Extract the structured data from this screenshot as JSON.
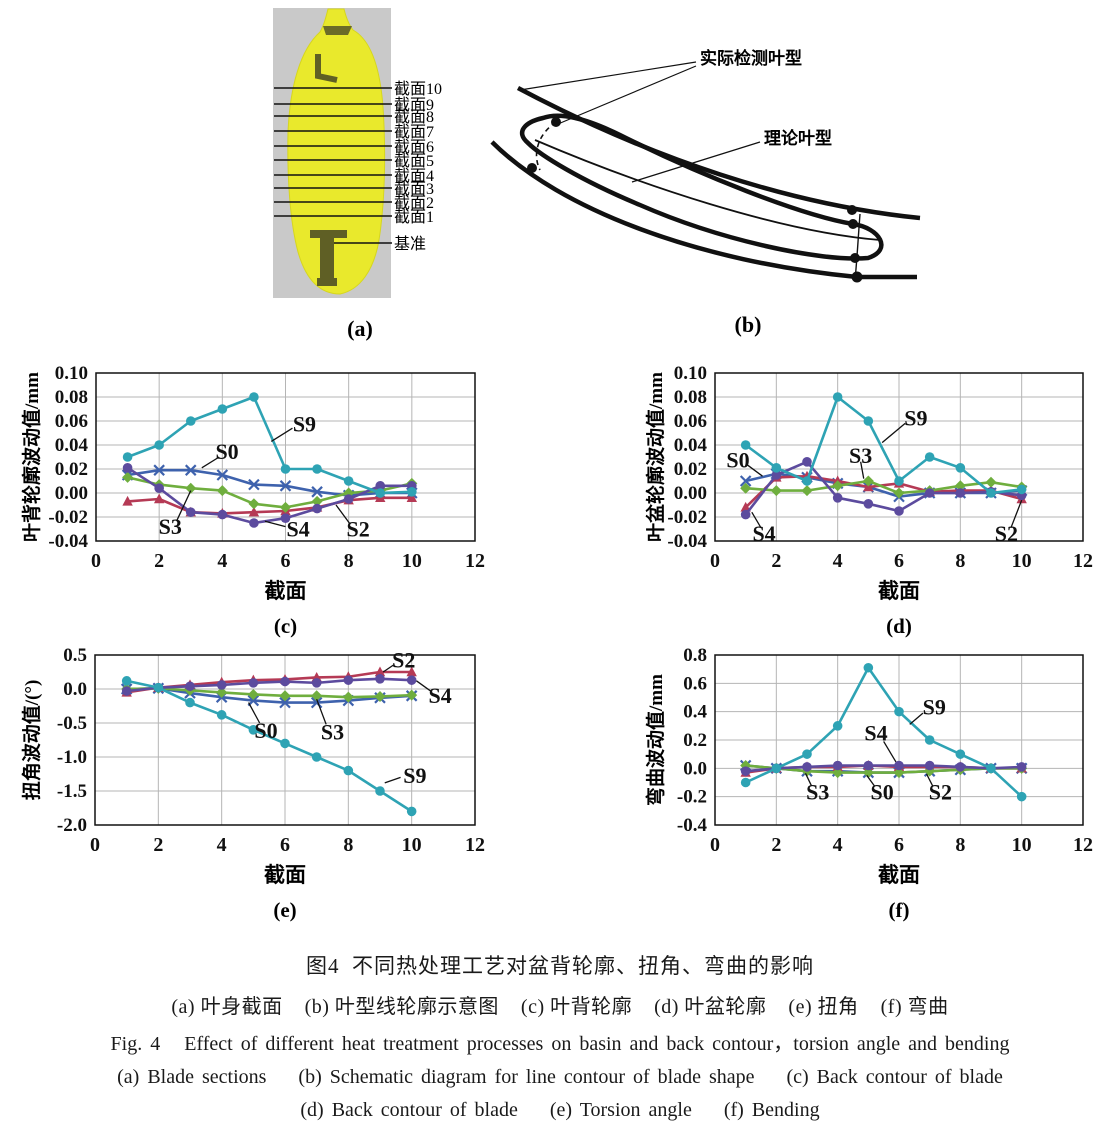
{
  "figure": {
    "caption_zh_title": "图4  不同热处理工艺对盆背轮廓、扭角、弯曲的影响",
    "caption_zh_sub": "(a) 叶身截面    (b) 叶型线轮廓示意图    (c) 叶背轮廓    (d) 叶盆轮廓    (e) 扭角    (f) 弯曲",
    "caption_en_title": "Fig. 4   Effect of different heat treatment processes on basin and back contour，torsion angle and bending",
    "caption_en_sub1": "(a) Blade sections    (b) Schematic diagram for line contour of blade shape    (c) Back contour of blade",
    "caption_en_sub2": "(d) Back contour of blade    (e) Torsion angle    (f) Bending"
  },
  "panel_a": {
    "letter": "(a)",
    "section_labels": [
      "截面10",
      "截面9",
      "截面8",
      "截面7",
      "截面6",
      "截面5",
      "截面4",
      "截面3",
      "截面2",
      "截面1"
    ],
    "datum_label": "基准",
    "blade_color": "#e9e92c",
    "background_color": "#c9c9c9"
  },
  "panel_b": {
    "letter": "(b)",
    "labels": {
      "actual": "实际检测叶型",
      "theory": "理论叶型"
    }
  },
  "colors": {
    "S0": "#3e62ad",
    "S2": "#b53a55",
    "S3": "#6fae3e",
    "S4": "#5c4b9e",
    "S9": "#2ea3b4"
  },
  "markers": {
    "S0": "x",
    "S2": "triangle",
    "S3": "diamond",
    "S4": "circle",
    "S9": "circle"
  },
  "chart_data": [
    {
      "id": "chart-c",
      "type": "line",
      "letter": "(c)",
      "xlabel": "截面",
      "ylabel": "叶背轮廓波动值/mm",
      "xlim": [
        0,
        12
      ],
      "ylim": [
        -0.04,
        0.1
      ],
      "xticks": [
        0,
        2,
        4,
        6,
        8,
        10,
        12
      ],
      "yticks": [
        0.1,
        0.08,
        0.06,
        0.04,
        0.02,
        0.0,
        -0.02,
        -0.04
      ],
      "y_tick_decimals": 2,
      "x": [
        1,
        2,
        3,
        4,
        5,
        6,
        7,
        8,
        9,
        10
      ],
      "series": [
        {
          "name": "S0",
          "values": [
            0.015,
            0.019,
            0.019,
            0.015,
            0.007,
            0.006,
            0.001,
            -0.002,
            0.0,
            0.0
          ]
        },
        {
          "name": "S2",
          "values": [
            -0.007,
            -0.005,
            -0.016,
            -0.017,
            -0.016,
            -0.015,
            -0.012,
            -0.006,
            -0.004,
            -0.004
          ]
        },
        {
          "name": "S3",
          "values": [
            0.013,
            0.007,
            0.004,
            0.002,
            -0.009,
            -0.012,
            -0.007,
            0.0,
            0.002,
            0.008
          ]
        },
        {
          "name": "S4",
          "values": [
            0.021,
            0.004,
            -0.016,
            -0.018,
            -0.025,
            -0.021,
            -0.013,
            -0.005,
            0.006,
            0.006
          ]
        },
        {
          "name": "S9",
          "values": [
            0.03,
            0.04,
            0.06,
            0.07,
            0.08,
            0.02,
            0.02,
            0.01,
            0.0,
            0.001
          ]
        }
      ],
      "annotations": [
        {
          "text": "S9",
          "tx": 6.6,
          "ty": 0.057,
          "x1": 6.22,
          "y1": 0.054,
          "x2": 5.55,
          "y2": 0.043
        },
        {
          "text": "S0",
          "tx": 4.15,
          "ty": 0.034,
          "x1": 3.9,
          "y1": 0.03,
          "x2": 3.35,
          "y2": 0.021
        },
        {
          "text": "S3",
          "tx": 2.35,
          "ty": -0.0285,
          "x1": 2.55,
          "y1": -0.0235,
          "x2": 3.0,
          "y2": 0.002
        },
        {
          "text": "S4",
          "tx": 6.4,
          "ty": -0.0305,
          "x1": 6.0,
          "y1": -0.028,
          "x2": 5.35,
          "y2": -0.0235
        },
        {
          "text": "S2",
          "tx": 8.3,
          "ty": -0.0305,
          "x1": 8.05,
          "y1": -0.026,
          "x2": 7.6,
          "y2": -0.01
        }
      ]
    },
    {
      "id": "chart-d",
      "type": "line",
      "letter": "(d)",
      "xlabel": "截面",
      "ylabel": "叶盆轮廓波动值/mm",
      "xlim": [
        0,
        12
      ],
      "ylim": [
        -0.04,
        0.1
      ],
      "xticks": [
        0,
        2,
        4,
        6,
        8,
        10,
        12
      ],
      "yticks": [
        0.1,
        0.08,
        0.06,
        0.04,
        0.02,
        0.0,
        -0.02,
        -0.04
      ],
      "y_tick_decimals": 2,
      "x": [
        1,
        2,
        3,
        4,
        5,
        6,
        7,
        8,
        9,
        10
      ],
      "series": [
        {
          "name": "S0",
          "values": [
            0.01,
            0.016,
            0.013,
            0.008,
            0.005,
            -0.003,
            0.0,
            0.0,
            0.0,
            0.002
          ]
        },
        {
          "name": "S2",
          "values": [
            -0.012,
            0.013,
            0.014,
            0.01,
            0.005,
            0.008,
            0.001,
            0.002,
            0.002,
            -0.005
          ]
        },
        {
          "name": "S3",
          "values": [
            0.004,
            0.002,
            0.002,
            0.006,
            0.01,
            0.0,
            0.002,
            0.006,
            0.009,
            0.005
          ]
        },
        {
          "name": "S4",
          "values": [
            -0.018,
            0.015,
            0.026,
            -0.004,
            -0.009,
            -0.015,
            0.0,
            0.0,
            0.001,
            -0.002
          ]
        },
        {
          "name": "S9",
          "values": [
            0.04,
            0.021,
            0.01,
            0.08,
            0.06,
            0.01,
            0.03,
            0.021,
            0.0,
            0.003
          ]
        }
      ],
      "annotations": [
        {
          "text": "S0",
          "tx": 0.75,
          "ty": 0.027,
          "x1": 1.05,
          "y1": 0.0235,
          "x2": 1.55,
          "y2": 0.014
        },
        {
          "text": "S9",
          "tx": 6.55,
          "ty": 0.062,
          "x1": 6.2,
          "y1": 0.058,
          "x2": 5.45,
          "y2": 0.042
        },
        {
          "text": "S3",
          "tx": 4.75,
          "ty": 0.031,
          "x1": 4.75,
          "y1": 0.026,
          "x2": 4.85,
          "y2": 0.012
        },
        {
          "text": "S4",
          "tx": 1.6,
          "ty": -0.034,
          "x1": 1.5,
          "y1": -0.029,
          "x2": 1.2,
          "y2": -0.016
        },
        {
          "text": "S2",
          "tx": 9.5,
          "ty": -0.034,
          "x1": 9.65,
          "y1": -0.029,
          "x2": 10.0,
          "y2": -0.006
        }
      ]
    },
    {
      "id": "chart-e",
      "type": "line",
      "letter": "(e)",
      "xlabel": "截面",
      "ylabel": "扭角波动值/(°)",
      "xlim": [
        0,
        12
      ],
      "ylim": [
        -2.0,
        0.5
      ],
      "xticks": [
        0,
        2,
        4,
        6,
        8,
        10,
        12
      ],
      "yticks": [
        0.5,
        0.0,
        -0.5,
        -1.0,
        -1.5,
        -2.0
      ],
      "y_tick_decimals": 1,
      "x": [
        1,
        2,
        3,
        4,
        5,
        6,
        7,
        8,
        9,
        10
      ],
      "series": [
        {
          "name": "S0",
          "values": [
            0.0,
            0.01,
            -0.06,
            -0.12,
            -0.17,
            -0.2,
            -0.2,
            -0.17,
            -0.13,
            -0.1
          ]
        },
        {
          "name": "S2",
          "values": [
            -0.05,
            0.02,
            0.06,
            0.1,
            0.13,
            0.14,
            0.17,
            0.18,
            0.25,
            0.25
          ]
        },
        {
          "name": "S3",
          "values": [
            0.0,
            0.01,
            -0.02,
            -0.05,
            -0.08,
            -0.1,
            -0.1,
            -0.12,
            -0.11,
            -0.09
          ]
        },
        {
          "name": "S4",
          "values": [
            -0.03,
            0.02,
            0.04,
            0.06,
            0.09,
            0.11,
            0.09,
            0.13,
            0.15,
            0.13
          ]
        },
        {
          "name": "S9",
          "values": [
            0.12,
            0.02,
            -0.2,
            -0.38,
            -0.6,
            -0.8,
            -1.0,
            -1.2,
            -1.5,
            -1.8
          ]
        }
      ],
      "annotations": [
        {
          "text": "S2",
          "tx": 9.75,
          "ty": 0.42,
          "x1": 9.45,
          "y1": 0.36,
          "x2": 9.1,
          "y2": 0.25
        },
        {
          "text": "S4",
          "tx": 10.9,
          "ty": -0.1,
          "x1": 10.6,
          "y1": -0.03,
          "x2": 10.15,
          "y2": 0.12
        },
        {
          "text": "S0",
          "tx": 5.4,
          "ty": -0.62,
          "x1": 5.2,
          "y1": -0.5,
          "x2": 4.85,
          "y2": -0.2
        },
        {
          "text": "S3",
          "tx": 7.5,
          "ty": -0.64,
          "x1": 7.3,
          "y1": -0.52,
          "x2": 7.0,
          "y2": -0.15
        },
        {
          "text": "S9",
          "tx": 10.1,
          "ty": -1.28,
          "x1": 9.65,
          "y1": -1.3,
          "x2": 9.15,
          "y2": -1.38
        }
      ]
    },
    {
      "id": "chart-f",
      "type": "line",
      "letter": "(f)",
      "xlabel": "截面",
      "ylabel": "弯曲波动值/mm",
      "xlim": [
        0,
        12
      ],
      "ylim": [
        -0.4,
        0.8
      ],
      "xticks": [
        0,
        2,
        4,
        6,
        8,
        10,
        12
      ],
      "yticks": [
        0.8,
        0.6,
        0.4,
        0.2,
        0.0,
        -0.2,
        -0.4
      ],
      "y_tick_decimals": 1,
      "x": [
        1,
        2,
        3,
        4,
        5,
        6,
        7,
        8,
        9,
        10
      ],
      "series": [
        {
          "name": "S0",
          "values": [
            0.02,
            0.0,
            -0.02,
            -0.02,
            -0.03,
            -0.03,
            -0.02,
            -0.01,
            0.0,
            0.0
          ]
        },
        {
          "name": "S2",
          "values": [
            -0.03,
            0.0,
            0.01,
            0.01,
            0.02,
            0.01,
            0.01,
            0.01,
            0.0,
            0.0
          ]
        },
        {
          "name": "S3",
          "values": [
            0.02,
            0.0,
            -0.02,
            -0.03,
            -0.03,
            -0.03,
            -0.02,
            -0.01,
            0.0,
            0.0
          ]
        },
        {
          "name": "S4",
          "values": [
            -0.02,
            0.0,
            0.01,
            0.02,
            0.02,
            0.02,
            0.02,
            0.01,
            0.0,
            0.01
          ]
        },
        {
          "name": "S9",
          "values": [
            -0.1,
            0.0,
            0.1,
            0.3,
            0.71,
            0.4,
            0.2,
            0.1,
            0.0,
            -0.2
          ]
        }
      ],
      "annotations": [
        {
          "text": "S9",
          "tx": 7.15,
          "ty": 0.43,
          "x1": 6.78,
          "y1": 0.39,
          "x2": 6.35,
          "y2": 0.31
        },
        {
          "text": "S4",
          "tx": 5.25,
          "ty": 0.245,
          "x1": 5.5,
          "y1": 0.19,
          "x2": 5.9,
          "y2": 0.045
        },
        {
          "text": "S3",
          "tx": 3.35,
          "ty": -0.17,
          "x1": 3.15,
          "y1": -0.125,
          "x2": 2.95,
          "y2": -0.035
        },
        {
          "text": "S0",
          "tx": 5.45,
          "ty": -0.17,
          "x1": 5.2,
          "y1": -0.125,
          "x2": 4.95,
          "y2": -0.05
        },
        {
          "text": "S2",
          "tx": 7.35,
          "ty": -0.17,
          "x1": 7.1,
          "y1": -0.125,
          "x2": 6.9,
          "y2": -0.04
        }
      ]
    }
  ]
}
